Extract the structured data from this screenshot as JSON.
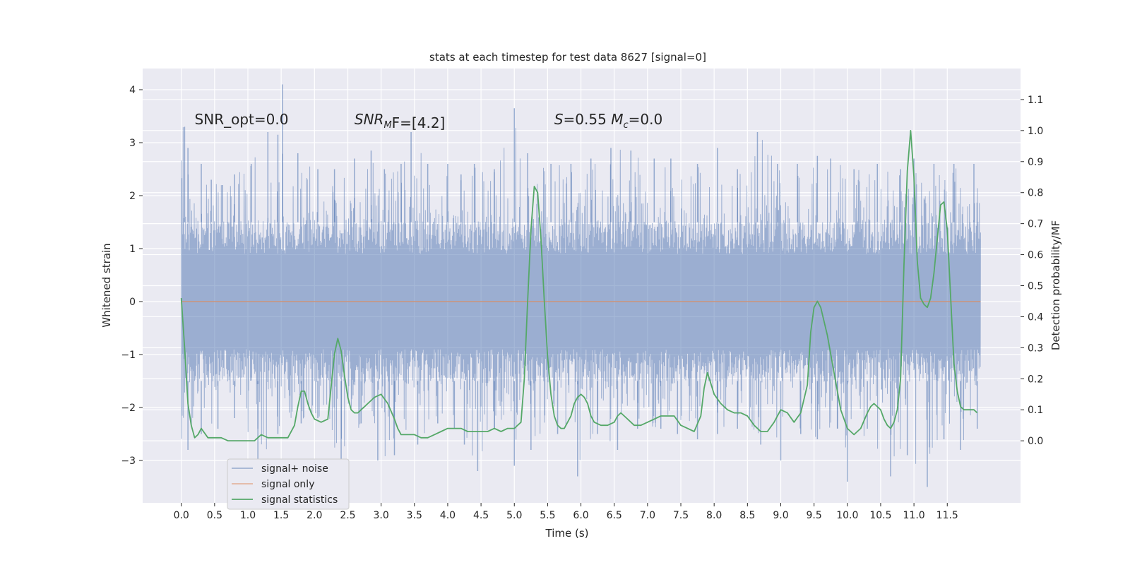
{
  "chart_data": {
    "type": "line",
    "title": "stats at each timestep for test data 8627 [signal=0]",
    "xlabel": "Time (s)",
    "ylabel": "Whitened strain",
    "y2label": "Detection probability/MF",
    "xlim": [
      -0.58,
      12.6
    ],
    "ylim": [
      -3.8,
      4.4
    ],
    "y2lim": [
      -0.2,
      1.2
    ],
    "grid": true,
    "legend_position": "lower-left",
    "xticks": [
      "0.0",
      "0.5",
      "1.0",
      "1.5",
      "2.0",
      "2.5",
      "3.0",
      "3.5",
      "4.0",
      "4.5",
      "5.0",
      "5.5",
      "6.0",
      "6.5",
      "7.0",
      "7.5",
      "8.0",
      "8.5",
      "9.0",
      "9.5",
      "10.0",
      "10.5",
      "11.0",
      "11.5"
    ],
    "yticks": [
      "−3",
      "−2",
      "−1",
      "0",
      "1",
      "2",
      "3",
      "4"
    ],
    "y2ticks": [
      "0.0",
      "0.1",
      "0.2",
      "0.3",
      "0.4",
      "0.5",
      "0.6",
      "0.7",
      "0.8",
      "0.9",
      "1.0",
      "1.1"
    ],
    "annotations": [
      {
        "text": "SNR_opt=0.0",
        "x": 0.2,
        "y": 3.35
      },
      {
        "text": "SNR_MF=[4.2]",
        "x": 2.6,
        "y": 3.35
      },
      {
        "text": "S=0.55   M_c=0.0",
        "x": 5.6,
        "y": 3.35
      }
    ],
    "series": [
      {
        "name": "signal+ noise",
        "color": "#4c72b0",
        "axis": "left",
        "band": {
          "x_start": 0.0,
          "x_end": 12.0,
          "core_low": -1.5,
          "core_high": 1.5
        },
        "peaks": [
          [
            0.05,
            3.3
          ],
          [
            0.1,
            2.9
          ],
          [
            0.3,
            2.6
          ],
          [
            0.45,
            2.3
          ],
          [
            0.62,
            2.2
          ],
          [
            0.8,
            2.4
          ],
          [
            1.05,
            2.6
          ],
          [
            1.3,
            3.2
          ],
          [
            1.45,
            3.15
          ],
          [
            1.52,
            4.1
          ],
          [
            1.75,
            2.8
          ],
          [
            2.05,
            2.5
          ],
          [
            2.3,
            2.5
          ],
          [
            2.6,
            2.7
          ],
          [
            2.85,
            2.85
          ],
          [
            3.05,
            2.5
          ],
          [
            3.3,
            2.6
          ],
          [
            3.45,
            3.2
          ],
          [
            3.7,
            2.6
          ],
          [
            4.0,
            2.6
          ],
          [
            4.2,
            2.4
          ],
          [
            4.4,
            2.6
          ],
          [
            4.7,
            2.5
          ],
          [
            5.0,
            3.65
          ],
          [
            5.2,
            2.8
          ],
          [
            5.55,
            2.6
          ],
          [
            5.85,
            2.6
          ],
          [
            6.15,
            2.7
          ],
          [
            6.45,
            2.9
          ],
          [
            6.75,
            2.85
          ],
          [
            7.1,
            2.7
          ],
          [
            7.35,
            2.7
          ],
          [
            7.75,
            2.6
          ],
          [
            8.05,
            2.9
          ],
          [
            8.35,
            2.5
          ],
          [
            8.65,
            3.2
          ],
          [
            8.95,
            2.6
          ],
          [
            9.25,
            2.6
          ],
          [
            9.55,
            2.75
          ],
          [
            9.75,
            2.7
          ],
          [
            10.1,
            2.5
          ],
          [
            10.45,
            2.6
          ],
          [
            10.8,
            2.5
          ],
          [
            11.0,
            2.7
          ],
          [
            11.3,
            2.6
          ],
          [
            11.6,
            2.6
          ],
          [
            11.9,
            2.6
          ]
        ],
        "troughs": [
          [
            0.1,
            -2.8
          ],
          [
            0.3,
            -2.5
          ],
          [
            0.55,
            -2.4
          ],
          [
            0.8,
            -2.2
          ],
          [
            1.15,
            -3.1
          ],
          [
            1.45,
            -2.5
          ],
          [
            1.8,
            -2.3
          ],
          [
            2.05,
            -2.2
          ],
          [
            2.4,
            -3.0
          ],
          [
            2.7,
            -2.3
          ],
          [
            2.95,
            -3.0
          ],
          [
            3.2,
            -2.9
          ],
          [
            3.55,
            -2.7
          ],
          [
            3.85,
            -2.3
          ],
          [
            4.1,
            -2.4
          ],
          [
            4.25,
            -2.7
          ],
          [
            4.45,
            -3.2
          ],
          [
            4.7,
            -2.4
          ],
          [
            5.0,
            -3.1
          ],
          [
            5.25,
            -2.8
          ],
          [
            5.65,
            -2.5
          ],
          [
            5.95,
            -3.3
          ],
          [
            6.25,
            -2.5
          ],
          [
            6.55,
            -2.8
          ],
          [
            6.85,
            -2.4
          ],
          [
            7.2,
            -2.4
          ],
          [
            7.45,
            -2.5
          ],
          [
            7.75,
            -2.6
          ],
          [
            8.05,
            -2.5
          ],
          [
            8.35,
            -2.4
          ],
          [
            8.7,
            -2.7
          ],
          [
            9.0,
            -3.0
          ],
          [
            9.3,
            -2.5
          ],
          [
            9.55,
            -2.6
          ],
          [
            9.85,
            -2.4
          ],
          [
            10.0,
            -3.4
          ],
          [
            10.3,
            -2.4
          ],
          [
            10.65,
            -3.3
          ],
          [
            10.9,
            -2.9
          ],
          [
            11.2,
            -3.5
          ],
          [
            11.45,
            -2.6
          ],
          [
            11.7,
            -2.8
          ],
          [
            11.95,
            -2.4
          ]
        ]
      },
      {
        "name": "signal only",
        "color": "#dd8452",
        "axis": "left",
        "x": [
          0.0,
          12.0
        ],
        "y": [
          0.0,
          0.0
        ]
      },
      {
        "name": "signal statistics",
        "color": "#55a868",
        "axis": "right",
        "x": [
          0.0,
          0.05,
          0.1,
          0.15,
          0.2,
          0.25,
          0.3,
          0.4,
          0.5,
          0.6,
          0.7,
          0.8,
          0.9,
          1.0,
          1.1,
          1.2,
          1.3,
          1.4,
          1.5,
          1.6,
          1.7,
          1.75,
          1.8,
          1.85,
          1.9,
          1.95,
          2.0,
          2.1,
          2.2,
          2.3,
          2.35,
          2.4,
          2.45,
          2.5,
          2.55,
          2.6,
          2.65,
          2.7,
          2.75,
          2.8,
          2.9,
          3.0,
          3.1,
          3.2,
          3.25,
          3.3,
          3.4,
          3.5,
          3.6,
          3.7,
          3.8,
          3.9,
          4.0,
          4.1,
          4.2,
          4.3,
          4.4,
          4.5,
          4.6,
          4.7,
          4.8,
          4.9,
          5.0,
          5.1,
          5.15,
          5.2,
          5.25,
          5.3,
          5.35,
          5.4,
          5.45,
          5.5,
          5.55,
          5.6,
          5.65,
          5.7,
          5.75,
          5.8,
          5.85,
          5.9,
          5.95,
          6.0,
          6.05,
          6.1,
          6.15,
          6.2,
          6.3,
          6.4,
          6.5,
          6.55,
          6.6,
          6.7,
          6.8,
          6.9,
          7.0,
          7.1,
          7.2,
          7.3,
          7.4,
          7.5,
          7.6,
          7.7,
          7.8,
          7.85,
          7.9,
          8.0,
          8.1,
          8.2,
          8.3,
          8.4,
          8.5,
          8.6,
          8.7,
          8.8,
          8.9,
          9.0,
          9.1,
          9.2,
          9.3,
          9.4,
          9.45,
          9.5,
          9.55,
          9.6,
          9.7,
          9.8,
          9.9,
          10.0,
          10.1,
          10.2,
          10.3,
          10.35,
          10.4,
          10.5,
          10.55,
          10.6,
          10.65,
          10.7,
          10.75,
          10.8,
          10.85,
          10.9,
          10.95,
          11.0,
          11.05,
          11.1,
          11.15,
          11.2,
          11.25,
          11.3,
          11.35,
          11.4,
          11.45,
          11.5,
          11.6,
          11.65,
          11.7,
          11.75,
          11.8,
          11.9,
          11.95
        ],
        "y": [
          0.46,
          0.3,
          0.12,
          0.05,
          0.01,
          0.02,
          0.04,
          0.01,
          0.01,
          0.01,
          0.0,
          0.0,
          0.0,
          0.0,
          0.0,
          0.02,
          0.01,
          0.01,
          0.01,
          0.01,
          0.05,
          0.11,
          0.16,
          0.16,
          0.12,
          0.09,
          0.07,
          0.06,
          0.07,
          0.28,
          0.33,
          0.29,
          0.21,
          0.14,
          0.1,
          0.09,
          0.09,
          0.1,
          0.11,
          0.12,
          0.14,
          0.15,
          0.12,
          0.07,
          0.04,
          0.02,
          0.02,
          0.02,
          0.01,
          0.01,
          0.02,
          0.03,
          0.04,
          0.04,
          0.04,
          0.03,
          0.03,
          0.03,
          0.03,
          0.04,
          0.03,
          0.04,
          0.04,
          0.06,
          0.2,
          0.45,
          0.68,
          0.82,
          0.8,
          0.65,
          0.45,
          0.27,
          0.15,
          0.08,
          0.05,
          0.04,
          0.04,
          0.06,
          0.08,
          0.12,
          0.14,
          0.15,
          0.14,
          0.12,
          0.08,
          0.06,
          0.05,
          0.05,
          0.06,
          0.08,
          0.09,
          0.07,
          0.05,
          0.05,
          0.06,
          0.07,
          0.08,
          0.08,
          0.08,
          0.05,
          0.04,
          0.03,
          0.08,
          0.17,
          0.22,
          0.15,
          0.12,
          0.1,
          0.09,
          0.09,
          0.08,
          0.05,
          0.03,
          0.03,
          0.06,
          0.1,
          0.09,
          0.06,
          0.09,
          0.18,
          0.35,
          0.43,
          0.45,
          0.43,
          0.34,
          0.22,
          0.1,
          0.04,
          0.02,
          0.04,
          0.09,
          0.11,
          0.12,
          0.1,
          0.07,
          0.05,
          0.04,
          0.06,
          0.1,
          0.2,
          0.57,
          0.87,
          1.0,
          0.85,
          0.58,
          0.46,
          0.44,
          0.43,
          0.46,
          0.54,
          0.65,
          0.76,
          0.77,
          0.68,
          0.25,
          0.16,
          0.11,
          0.1,
          0.1,
          0.1,
          0.09
        ]
      }
    ]
  }
}
